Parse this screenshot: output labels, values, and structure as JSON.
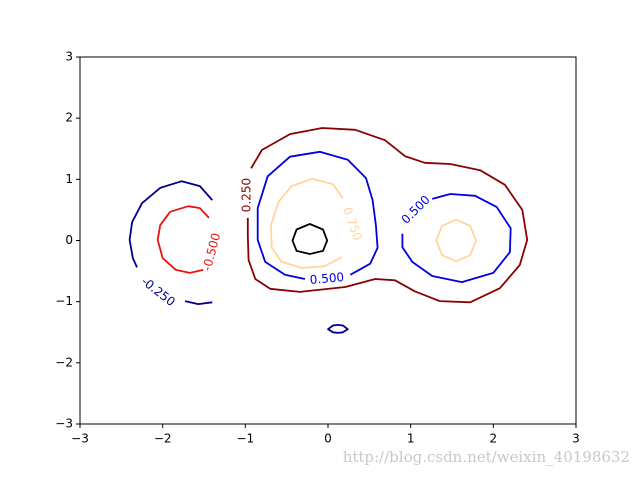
{
  "chart_data": {
    "type": "contour",
    "xlim": [
      -3,
      3
    ],
    "ylim": [
      -3,
      3
    ],
    "xticks": [
      {
        "value": -3,
        "label": "−3"
      },
      {
        "value": -2,
        "label": "−2"
      },
      {
        "value": -1,
        "label": "−1"
      },
      0,
      1,
      2,
      3
    ],
    "yticks": [
      {
        "value": -3,
        "label": "−3"
      },
      {
        "value": -2,
        "label": "−2"
      },
      {
        "value": -1,
        "label": "−1"
      },
      0,
      1,
      2,
      3
    ],
    "levels": [
      {
        "value": -0.5,
        "label": "-0.500",
        "color": "#ee1111",
        "lines": [
          {
            "x": [
              -1.44,
              -1.55,
              -1.69,
              -1.91,
              -2.03,
              -2.06,
              -2.0,
              -1.84,
              -1.67,
              -1.51
            ],
            "y": [
              0.37,
              0.53,
              0.56,
              0.47,
              0.25,
              0.01,
              -0.29,
              -0.48,
              -0.53,
              -0.48
            ]
          }
        ]
      },
      {
        "value": -0.25,
        "label": "-0.250",
        "color": "#00008b",
        "lines": [
          {
            "x": [
              -1.4,
              -1.55,
              -1.77,
              -2.03,
              -2.25,
              -2.37,
              -2.4,
              -2.36,
              -2.31
            ],
            "y": [
              0.66,
              0.89,
              0.97,
              0.86,
              0.61,
              0.3,
              0.01,
              -0.29,
              -0.44
            ]
          },
          {
            "x": [
              -1.73,
              -1.57,
              -1.4
            ],
            "y": [
              -0.99,
              -1.04,
              -1.01
            ]
          },
          {
            "x": [
              0.0,
              0.06,
              0.12,
              0.18,
              0.24,
              0.18,
              0.12,
              0.06
            ],
            "y": [
              -1.45,
              -1.39,
              -1.38,
              -1.39,
              -1.45,
              -1.5,
              -1.51,
              -1.5
            ],
            "closed": true
          }
        ]
      },
      {
        "value": 0.25,
        "label": "0.250",
        "color": "#8b0000",
        "lines": [
          {
            "x": [
              -0.93,
              -0.8,
              -0.46,
              -0.07,
              0.33,
              0.69,
              0.93,
              1.17,
              1.48,
              1.84,
              2.14,
              2.35,
              2.41,
              2.32,
              2.08,
              1.72,
              1.35,
              1.05,
              0.81,
              0.57,
              0.21,
              -0.34,
              -0.7,
              -0.88,
              -0.96,
              -0.97,
              -0.97
            ],
            "y": [
              1.18,
              1.48,
              1.74,
              1.84,
              1.81,
              1.64,
              1.38,
              1.27,
              1.25,
              1.15,
              0.91,
              0.5,
              0.01,
              -0.4,
              -0.78,
              -1.01,
              -0.99,
              -0.83,
              -0.65,
              -0.63,
              -0.76,
              -0.84,
              -0.79,
              -0.63,
              -0.32,
              0.09,
              0.37
            ]
          }
        ]
      },
      {
        "value": 0.5,
        "label": "0.500",
        "color": "#0000e0",
        "lines": [
          {
            "x": [
              0.27,
              0.51,
              0.6,
              0.58,
              0.54,
              0.46,
              0.24,
              -0.1,
              -0.46,
              -0.73,
              -0.85,
              -0.85,
              -0.76,
              -0.52,
              -0.28
            ],
            "y": [
              -0.56,
              -0.38,
              -0.12,
              0.25,
              0.66,
              1.02,
              1.32,
              1.45,
              1.37,
              1.05,
              0.53,
              0.01,
              -0.35,
              -0.56,
              -0.63
            ]
          },
          {
            "x": [
              1.26,
              1.48,
              1.78,
              2.04,
              2.21,
              2.2,
              2.0,
              1.62,
              1.26,
              1.02,
              0.9,
              0.9
            ],
            "y": [
              0.68,
              0.76,
              0.73,
              0.55,
              0.2,
              -0.19,
              -0.53,
              -0.68,
              -0.58,
              -0.35,
              -0.11,
              0.11
            ]
          }
        ]
      },
      {
        "value": 0.75,
        "label": "0.750",
        "color": "#ffd59e",
        "lines": [
          {
            "x": [
              0.18,
              0.06,
              -0.19,
              -0.44,
              -0.6,
              -0.69,
              -0.68,
              -0.56,
              -0.31,
              -0.04,
              0.17
            ],
            "y": [
              0.69,
              0.92,
              1.01,
              0.89,
              0.63,
              0.25,
              -0.12,
              -0.35,
              -0.45,
              -0.42,
              -0.27
            ]
          },
          {
            "x": [
              1.79,
              1.72,
              1.55,
              1.38,
              1.31,
              1.38,
              1.55,
              1.72
            ],
            "y": [
              0.0,
              0.24,
              0.34,
              0.24,
              0.0,
              -0.24,
              -0.34,
              -0.24
            ],
            "closed": true
          }
        ]
      },
      {
        "value": 1.0,
        "color": "#000000",
        "lines": [
          {
            "x": [
              -0.01,
              -0.06,
              -0.22,
              -0.38,
              -0.43,
              -0.38,
              -0.22,
              -0.06
            ],
            "y": [
              0.0,
              0.18,
              0.27,
              0.18,
              0.0,
              -0.17,
              -0.22,
              -0.17
            ],
            "closed": true
          }
        ]
      }
    ]
  },
  "watermark": "http://blog.csdn.net/weixin_40198632"
}
